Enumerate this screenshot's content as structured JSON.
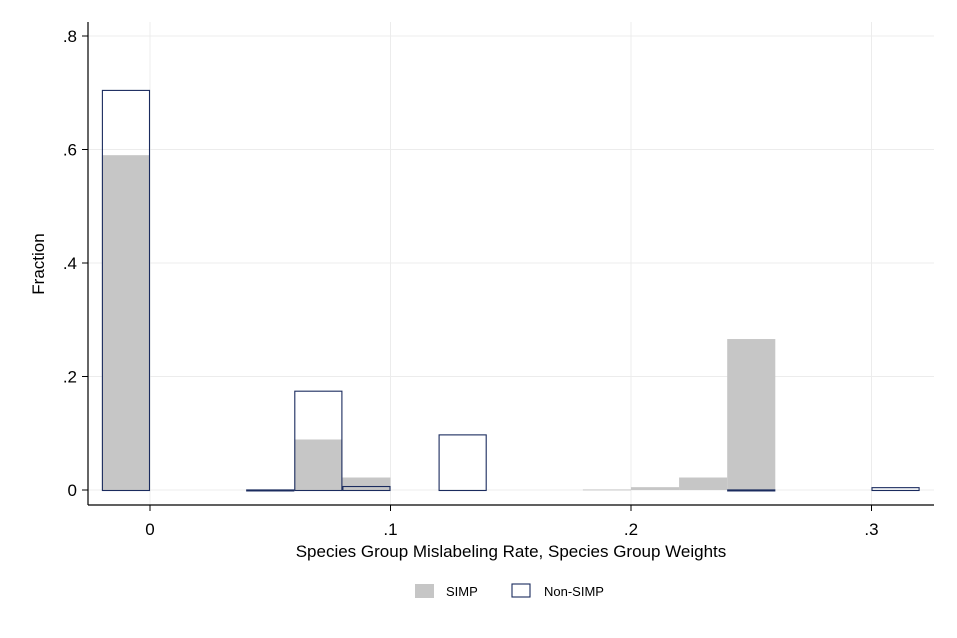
{
  "chart_data": {
    "type": "bar",
    "title": "",
    "xlabel": "Species Group Mislabeling Rate, Species Group Weights",
    "ylabel": "Fraction",
    "xlim": [
      -0.025,
      0.325
    ],
    "ylim": [
      -0.025,
      0.825
    ],
    "x_ticks": [
      {
        "value": 0,
        "label": "0"
      },
      {
        "value": 0.1,
        "label": ".1"
      },
      {
        "value": 0.2,
        "label": ".2"
      },
      {
        "value": 0.3,
        "label": ".3"
      }
    ],
    "y_ticks": [
      {
        "value": 0,
        "label": "0"
      },
      {
        "value": 0.2,
        "label": ".2"
      },
      {
        "value": 0.4,
        "label": ".4"
      },
      {
        "value": 0.6,
        "label": ".6"
      },
      {
        "value": 0.8,
        "label": ".8"
      }
    ],
    "grid": true,
    "legend_position": "bottom",
    "bin_width": 0.02,
    "series": [
      {
        "name": "SIMP",
        "color": "#c6c6c6",
        "style": "filled",
        "bins": [
          {
            "x": -0.02,
            "value": 0.59
          },
          {
            "x": 0.06,
            "value": 0.089
          },
          {
            "x": 0.08,
            "value": 0.022
          },
          {
            "x": 0.18,
            "value": 0.001
          },
          {
            "x": 0.2,
            "value": 0.005
          },
          {
            "x": 0.22,
            "value": 0.022
          },
          {
            "x": 0.24,
            "value": 0.266
          }
        ]
      },
      {
        "name": "Non-SIMP",
        "color": "#1a2b5e",
        "style": "outline",
        "bins": [
          {
            "x": -0.02,
            "value": 0.705
          },
          {
            "x": 0.04,
            "value": 0.001
          },
          {
            "x": 0.06,
            "value": 0.175
          },
          {
            "x": 0.08,
            "value": 0.007
          },
          {
            "x": 0.12,
            "value": 0.098
          },
          {
            "x": 0.24,
            "value": 0.001
          },
          {
            "x": 0.3,
            "value": 0.005
          }
        ]
      }
    ],
    "colors": {
      "grid": "#ececec",
      "axis": "#000000",
      "simp_fill": "#c6c6c6",
      "nonsimp_stroke": "#1a2b5e"
    }
  }
}
